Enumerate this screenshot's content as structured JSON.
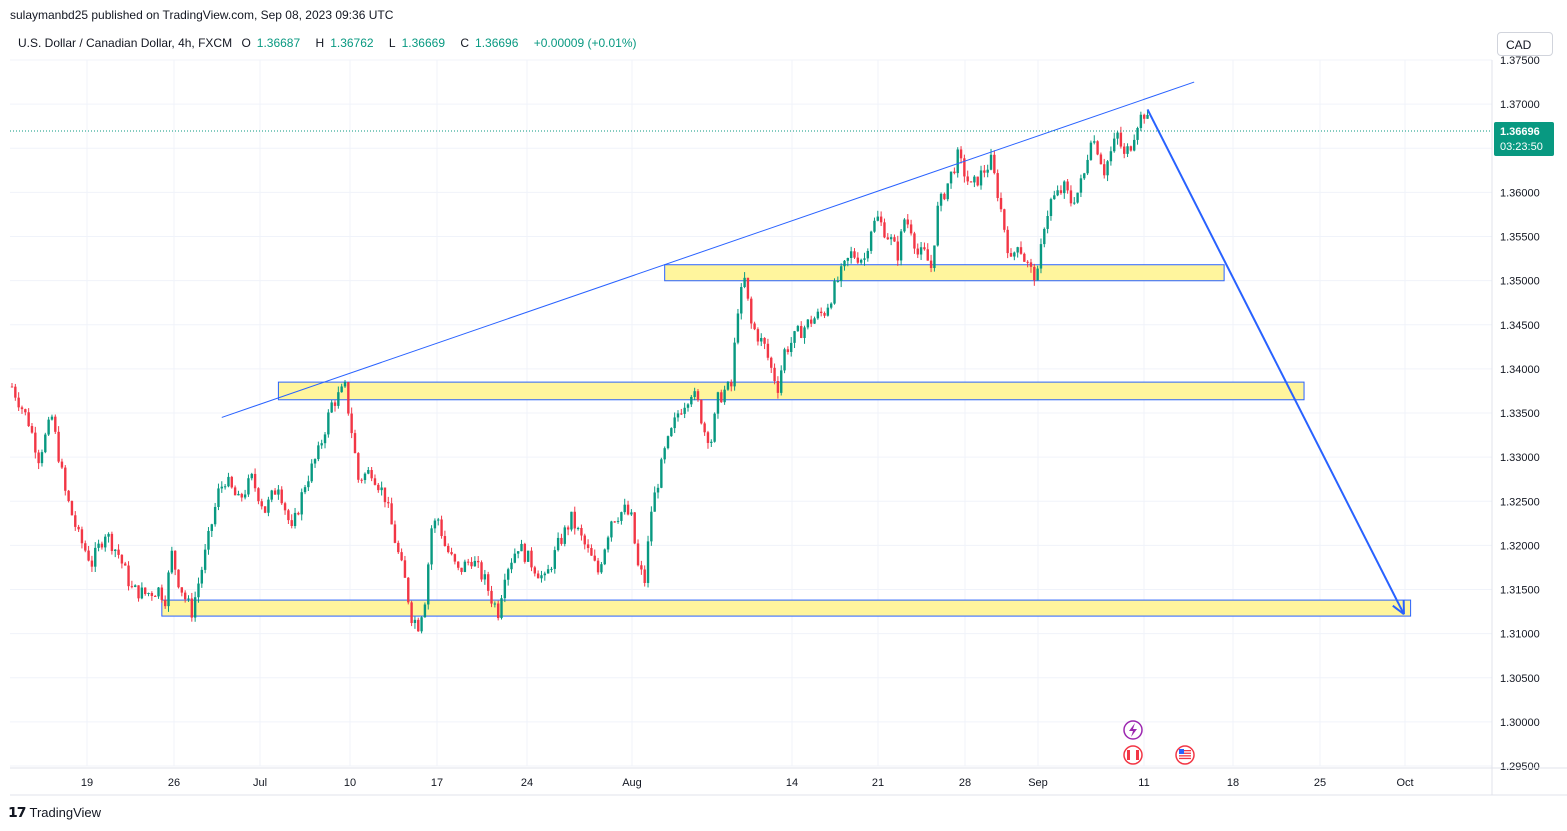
{
  "header": {
    "published": "sulaymanbd25 published on TradingView.com, Sep 08, 2023 09:36 UTC",
    "symbol": "U.S. Dollar / Canadian Dollar, 4h, FXCM",
    "o_label": "O",
    "o": "1.36687",
    "h_label": "H",
    "h": "1.36762",
    "l_label": "L",
    "l": "1.36669",
    "c_label": "C",
    "c": "1.36696",
    "change": "+0.00009 (+0.01%)"
  },
  "currency_button": "CAD",
  "price_tag": {
    "price": "1.36696",
    "countdown": "03:23:50"
  },
  "footer": {
    "brand": "TradingView"
  },
  "colors": {
    "up": "#089981",
    "down": "#f23645",
    "zone_fill": "#fff59d",
    "line": "#2962ff"
  },
  "chart_data": {
    "type": "candlestick",
    "y_axis_labels": [
      "1.37500",
      "1.37000",
      "1.36500",
      "1.36000",
      "1.35500",
      "1.35000",
      "1.34500",
      "1.34000",
      "1.33500",
      "1.33000",
      "1.32500",
      "1.32000",
      "1.31500",
      "1.31000",
      "1.30500",
      "1.30000",
      "1.29500"
    ],
    "ylim": [
      1.295,
      1.375
    ],
    "x_axis_labels": [
      "19",
      "26",
      "Jul",
      "10",
      "17",
      "24",
      "Aug",
      "14",
      "21",
      "28",
      "Sep",
      "11",
      "18",
      "25",
      "Oct"
    ],
    "path": [
      [
        0,
        1.338
      ],
      [
        5,
        1.334
      ],
      [
        8,
        1.33
      ],
      [
        12,
        1.3345
      ],
      [
        16,
        1.326
      ],
      [
        20,
        1.321
      ],
      [
        24,
        1.318
      ],
      [
        28,
        1.3215
      ],
      [
        32,
        1.319
      ],
      [
        36,
        1.315
      ],
      [
        40,
        1.3145
      ],
      [
        44,
        1.315
      ],
      [
        46,
        1.314
      ],
      [
        48,
        1.319
      ],
      [
        50,
        1.316
      ],
      [
        52,
        1.314
      ],
      [
        54,
        1.3125
      ],
      [
        58,
        1.319
      ],
      [
        62,
        1.326
      ],
      [
        64,
        1.3275
      ],
      [
        68,
        1.325
      ],
      [
        72,
        1.3275
      ],
      [
        76,
        1.324
      ],
      [
        80,
        1.327
      ],
      [
        84,
        1.3215
      ],
      [
        88,
        1.327
      ],
      [
        92,
        1.3305
      ],
      [
        96,
        1.336
      ],
      [
        100,
        1.3378
      ],
      [
        102,
        1.333
      ],
      [
        104,
        1.3275
      ],
      [
        108,
        1.3285
      ],
      [
        112,
        1.3255
      ],
      [
        116,
        1.319
      ],
      [
        118,
        1.316
      ],
      [
        120,
        1.312
      ],
      [
        122,
        1.311
      ],
      [
        124,
        1.314
      ],
      [
        126,
        1.322
      ],
      [
        128,
        1.323
      ],
      [
        130,
        1.32
      ],
      [
        134,
        1.317
      ],
      [
        138,
        1.3185
      ],
      [
        142,
        1.316
      ],
      [
        144,
        1.314
      ],
      [
        146,
        1.3125
      ],
      [
        148,
        1.317
      ],
      [
        152,
        1.32
      ],
      [
        156,
        1.318
      ],
      [
        160,
        1.316
      ],
      [
        164,
        1.32
      ],
      [
        168,
        1.323
      ],
      [
        172,
        1.32
      ],
      [
        176,
        1.317
      ],
      [
        180,
        1.323
      ],
      [
        184,
        1.324
      ],
      [
        186,
        1.323
      ],
      [
        188,
        1.3175
      ],
      [
        190,
        1.316
      ],
      [
        192,
        1.324
      ],
      [
        196,
        1.3305
      ],
      [
        200,
        1.335
      ],
      [
        204,
        1.3375
      ],
      [
        206,
        1.336
      ],
      [
        208,
        1.333
      ],
      [
        210,
        1.332
      ],
      [
        212,
        1.3365
      ],
      [
        214,
        1.3375
      ],
      [
        216,
        1.338
      ],
      [
        218,
        1.347
      ],
      [
        220,
        1.35
      ],
      [
        222,
        1.345
      ],
      [
        226,
        1.3425
      ],
      [
        228,
        1.34
      ],
      [
        230,
        1.338
      ],
      [
        232,
        1.342
      ],
      [
        236,
        1.344
      ],
      [
        240,
        1.3455
      ],
      [
        244,
        1.3465
      ],
      [
        248,
        1.35
      ],
      [
        252,
        1.353
      ],
      [
        256,
        1.3525
      ],
      [
        258,
        1.356
      ],
      [
        260,
        1.357
      ],
      [
        264,
        1.3545
      ],
      [
        266,
        1.353
      ],
      [
        268,
        1.357
      ],
      [
        270,
        1.356
      ],
      [
        272,
        1.353
      ],
      [
        274,
        1.353
      ],
      [
        276,
        1.3515
      ],
      [
        278,
        1.358
      ],
      [
        280,
        1.36
      ],
      [
        284,
        1.364
      ],
      [
        288,
        1.3605
      ],
      [
        290,
        1.3615
      ],
      [
        292,
        1.3625
      ],
      [
        294,
        1.3635
      ],
      [
        296,
        1.36
      ],
      [
        298,
        1.356
      ],
      [
        300,
        1.352
      ],
      [
        302,
        1.3545
      ],
      [
        304,
        1.3525
      ],
      [
        306,
        1.351
      ],
      [
        308,
        1.3505
      ],
      [
        310,
        1.3565
      ],
      [
        312,
        1.359
      ],
      [
        316,
        1.3605
      ],
      [
        318,
        1.359
      ],
      [
        320,
        1.36
      ],
      [
        322,
        1.362
      ],
      [
        324,
        1.3665
      ],
      [
        326,
        1.365
      ],
      [
        328,
        1.3625
      ],
      [
        330,
        1.3645
      ],
      [
        332,
        1.3665
      ],
      [
        334,
        1.364
      ],
      [
        336,
        1.3655
      ],
      [
        338,
        1.368
      ],
      [
        340,
        1.369
      ],
      [
        342,
        1.367
      ]
    ],
    "zones": [
      {
        "t_start": 45,
        "t_end": 420,
        "low": 1.3122,
        "high": 1.3138
      },
      {
        "t_start": 80,
        "t_end": 388,
        "low": 1.3365,
        "high": 1.3385
      },
      {
        "t_start": 196,
        "t_end": 364,
        "low": 1.35,
        "high": 1.3518
      }
    ],
    "trendline": {
      "t1": 63,
      "p1": 1.3345,
      "t2": 355,
      "p2": 1.3725
    },
    "projection": {
      "t1": 341,
      "p1": 1.3694,
      "t2": 418,
      "p2": 1.3122
    },
    "last_price": 1.36696
  }
}
